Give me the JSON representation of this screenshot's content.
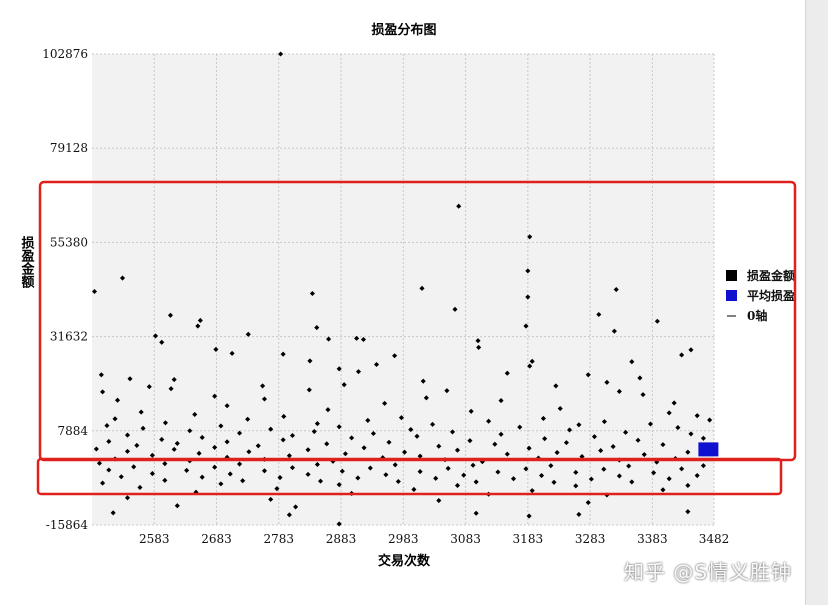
{
  "watermark": "知乎 @S情义胜钟",
  "chart_data": {
    "type": "scatter",
    "title": "损盈分布图",
    "xlabel": "交易次数",
    "ylabel": "损盈金额",
    "xlim": [
      2483,
      3482
    ],
    "ylim": [
      -15864,
      102876
    ],
    "xticks": [
      2583,
      2683,
      2783,
      2883,
      2983,
      3083,
      3183,
      3283,
      3383,
      3482
    ],
    "yticks": [
      -15864,
      7884,
      31632,
      55380,
      79128,
      102876
    ],
    "grid": true,
    "legend_position": "right",
    "legend": [
      {
        "label": "损盈金额",
        "color": "#000000",
        "kind": "square"
      },
      {
        "label": "平均损盈",
        "color": "#1010d0",
        "kind": "square"
      },
      {
        "label": "0轴",
        "color": "#000000",
        "kind": "line"
      }
    ],
    "series": [
      {
        "name": "损盈金额",
        "color": "#000000",
        "points": [
          [
            2786,
            102876
          ],
          [
            3072,
            64500
          ],
          [
            3186,
            56800
          ],
          [
            3183,
            48200
          ],
          [
            2532,
            46400
          ],
          [
            3183,
            41600
          ],
          [
            2487,
            43000
          ],
          [
            3013,
            43800
          ],
          [
            3325,
            43500
          ],
          [
            2837,
            42500
          ],
          [
            3066,
            38500
          ],
          [
            3297,
            37200
          ],
          [
            2609,
            37000
          ],
          [
            2657,
            35700
          ],
          [
            2653,
            34300
          ],
          [
            3180,
            34300
          ],
          [
            2844,
            33900
          ],
          [
            3322,
            33000
          ],
          [
            2734,
            32200
          ],
          [
            2585,
            31800
          ],
          [
            3391,
            35500
          ],
          [
            2863,
            31000
          ],
          [
            2908,
            31200
          ],
          [
            2919,
            30900
          ],
          [
            3103,
            30600
          ],
          [
            2595,
            30200
          ],
          [
            2682,
            28400
          ],
          [
            3104,
            28900
          ],
          [
            2708,
            27400
          ],
          [
            3445,
            28300
          ],
          [
            2790,
            27200
          ],
          [
            2969,
            26800
          ],
          [
            3430,
            27000
          ],
          [
            2833,
            25500
          ],
          [
            3190,
            25400
          ],
          [
            3350,
            25300
          ],
          [
            2940,
            24600
          ],
          [
            3186,
            24200
          ],
          [
            2880,
            23500
          ],
          [
            2911,
            22800
          ],
          [
            3150,
            22400
          ],
          [
            3280,
            22000
          ],
          [
            2498,
            22000
          ],
          [
            2544,
            21000
          ],
          [
            3363,
            21200
          ],
          [
            2615,
            20800
          ],
          [
            3015,
            20400
          ],
          [
            3310,
            20100
          ],
          [
            2575,
            19000
          ],
          [
            2757,
            19200
          ],
          [
            2888,
            19500
          ],
          [
            3228,
            19200
          ],
          [
            2610,
            18500
          ],
          [
            2832,
            18200
          ],
          [
            3053,
            18000
          ],
          [
            3330,
            17800
          ],
          [
            2500,
            17700
          ],
          [
            3368,
            17000
          ],
          [
            2680,
            16600
          ],
          [
            3020,
            16200
          ],
          [
            2760,
            15900
          ],
          [
            3140,
            15500
          ],
          [
            2524,
            15600
          ],
          [
            2953,
            14800
          ],
          [
            3418,
            14900
          ],
          [
            2700,
            14200
          ],
          [
            3235,
            13500
          ],
          [
            2862,
            13200
          ],
          [
            3092,
            12800
          ],
          [
            2562,
            12600
          ],
          [
            3410,
            12400
          ],
          [
            2648,
            12000
          ],
          [
            2791,
            11500
          ],
          [
            2980,
            11200
          ],
          [
            3208,
            11000
          ],
          [
            3455,
            11700
          ],
          [
            2520,
            10900
          ],
          [
            2733,
            10800
          ],
          [
            2926,
            10500
          ],
          [
            3120,
            10300
          ],
          [
            3306,
            10200
          ],
          [
            3475,
            10600
          ],
          [
            2601,
            9900
          ],
          [
            2845,
            9700
          ],
          [
            3030,
            9500
          ],
          [
            3265,
            9400
          ],
          [
            3380,
            9600
          ],
          [
            2507,
            9200
          ],
          [
            2690,
            9100
          ],
          [
            2880,
            8900
          ],
          [
            3170,
            8800
          ],
          [
            3424,
            8700
          ],
          [
            2565,
            8500
          ],
          [
            2770,
            8300
          ],
          [
            2995,
            8200
          ],
          [
            3250,
            8100
          ],
          [
            2640,
            7900
          ],
          [
            2840,
            7700
          ],
          [
            3062,
            7600
          ],
          [
            3340,
            7500
          ],
          [
            2720,
            7300
          ],
          [
            2935,
            7200
          ],
          [
            3140,
            7000
          ],
          [
            3445,
            7100
          ],
          [
            2540,
            6800
          ],
          [
            2805,
            6700
          ],
          [
            3005,
            6500
          ],
          [
            3290,
            6400
          ],
          [
            2660,
            6200
          ],
          [
            2900,
            6100
          ],
          [
            3210,
            5900
          ],
          [
            3465,
            6000
          ],
          [
            2595,
            5700
          ],
          [
            2790,
            5600
          ],
          [
            3090,
            5400
          ],
          [
            3360,
            5500
          ],
          [
            2510,
            5200
          ],
          [
            2700,
            5100
          ],
          [
            2960,
            5000
          ],
          [
            3245,
            4900
          ],
          [
            2620,
            4700
          ],
          [
            2860,
            4600
          ],
          [
            3130,
            4500
          ],
          [
            3400,
            4400
          ],
          [
            2555,
            4200
          ],
          [
            2750,
            4100
          ],
          [
            3040,
            4000
          ],
          [
            3320,
            3900
          ],
          [
            2680,
            3700
          ],
          [
            2920,
            3600
          ],
          [
            3185,
            3500
          ],
          [
            3470,
            3600
          ],
          [
            2490,
            3300
          ],
          [
            2615,
            3200
          ],
          [
            2830,
            3100
          ],
          [
            3070,
            3000
          ],
          [
            3300,
            2900
          ],
          [
            2540,
            2700
          ],
          [
            2735,
            2600
          ],
          [
            2985,
            2500
          ],
          [
            3230,
            2400
          ],
          [
            3440,
            2500
          ],
          [
            2655,
            2200
          ],
          [
            2890,
            2100
          ],
          [
            3150,
            2000
          ],
          [
            3370,
            1900
          ],
          [
            2580,
            1700
          ],
          [
            2800,
            1600
          ],
          [
            3010,
            1500
          ],
          [
            3270,
            1400
          ],
          [
            2700,
            1200
          ],
          [
            2950,
            1100
          ],
          [
            3200,
            1000
          ],
          [
            3420,
            900
          ],
          [
            2520,
            800
          ],
          [
            2760,
            700
          ],
          [
            3050,
            600
          ],
          [
            3330,
            500
          ],
          [
            2640,
            300
          ],
          [
            2870,
            200
          ],
          [
            3110,
            100
          ],
          [
            3390,
            0
          ],
          [
            2495,
            -300
          ],
          [
            2600,
            -400
          ],
          [
            2720,
            -500
          ],
          [
            2845,
            -600
          ],
          [
            2970,
            -700
          ],
          [
            3095,
            -800
          ],
          [
            3220,
            -900
          ],
          [
            3345,
            -1000
          ],
          [
            3465,
            -900
          ],
          [
            2550,
            -1200
          ],
          [
            2680,
            -1300
          ],
          [
            2805,
            -1400
          ],
          [
            2930,
            -1500
          ],
          [
            3055,
            -1600
          ],
          [
            3180,
            -1700
          ],
          [
            3305,
            -1800
          ],
          [
            3430,
            -1700
          ],
          [
            2510,
            -2000
          ],
          [
            2635,
            -2100
          ],
          [
            2760,
            -2200
          ],
          [
            2885,
            -2300
          ],
          [
            3010,
            -2400
          ],
          [
            3135,
            -2500
          ],
          [
            3260,
            -2600
          ],
          [
            3385,
            -2700
          ],
          [
            2580,
            -2900
          ],
          [
            2705,
            -3000
          ],
          [
            2830,
            -3100
          ],
          [
            2955,
            -3200
          ],
          [
            3080,
            -3300
          ],
          [
            3205,
            -3400
          ],
          [
            3330,
            -3500
          ],
          [
            3455,
            -3400
          ],
          [
            2530,
            -3700
          ],
          [
            2660,
            -3800
          ],
          [
            2785,
            -3900
          ],
          [
            2910,
            -4000
          ],
          [
            3035,
            -4100
          ],
          [
            3160,
            -4200
          ],
          [
            3285,
            -4300
          ],
          [
            3410,
            -4200
          ],
          [
            2600,
            -4600
          ],
          [
            2725,
            -4700
          ],
          [
            2850,
            -4800
          ],
          [
            2975,
            -4900
          ],
          [
            3100,
            -5000
          ],
          [
            3225,
            -5100
          ],
          [
            3350,
            -5000
          ],
          [
            2500,
            -5300
          ],
          [
            2690,
            -5500
          ],
          [
            2880,
            -5700
          ],
          [
            3070,
            -5900
          ],
          [
            3260,
            -6000
          ],
          [
            3440,
            -5900
          ],
          [
            2560,
            -6400
          ],
          [
            2780,
            -6700
          ],
          [
            3000,
            -6900
          ],
          [
            3190,
            -7200
          ],
          [
            3400,
            -7000
          ],
          [
            2650,
            -7600
          ],
          [
            2900,
            -7900
          ],
          [
            3120,
            -8100
          ],
          [
            3310,
            -8300
          ],
          [
            2540,
            -9000
          ],
          [
            2770,
            -9400
          ],
          [
            3040,
            -9700
          ],
          [
            3280,
            -10200
          ],
          [
            2810,
            -11300
          ],
          [
            2517,
            -12800
          ],
          [
            2800,
            -13300
          ],
          [
            3185,
            -13600
          ],
          [
            3440,
            -12500
          ],
          [
            3265,
            -13200
          ],
          [
            2880,
            -15600
          ],
          [
            3100,
            -12900
          ],
          [
            2620,
            -11000
          ]
        ]
      },
      {
        "name": "平均损盈",
        "color": "#1010d0",
        "points": [
          [
            3473,
            3200
          ]
        ]
      }
    ]
  }
}
